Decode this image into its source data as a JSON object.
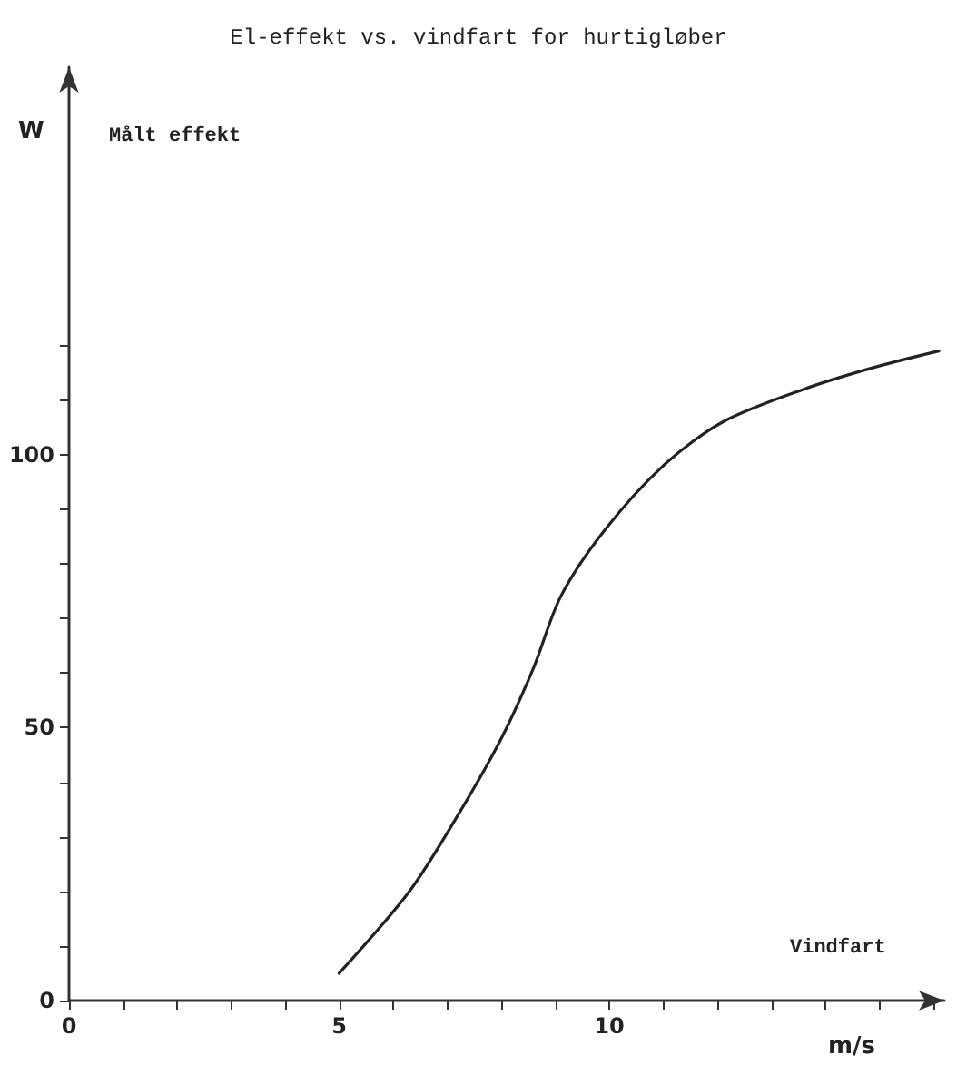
{
  "chart_data": {
    "type": "line",
    "title": "El-effekt vs. vindfart for hurtigløber",
    "xlabel": "m/s",
    "ylabel": "W",
    "annotations": [
      "Målt effekt",
      "Vindfart"
    ],
    "series": [
      {
        "color": "#222222",
        "x": [
          5.0,
          6.3,
          7.2,
          8.0,
          8.6,
          9.1,
          9.9,
          11.0,
          12.1,
          13.6,
          14.9,
          16.1
        ],
        "values": [
          5,
          20,
          34,
          48,
          61,
          74,
          86,
          98,
          106,
          112,
          116,
          119
        ]
      }
    ],
    "xlim": [
      0,
      16.2
    ],
    "ylim": [
      0,
      171
    ],
    "xticks": [
      0,
      {
        "value": 1,
        "label": null
      },
      {
        "value": 2,
        "label": null
      },
      {
        "value": 3,
        "label": null
      },
      {
        "value": 4,
        "label": null
      },
      5,
      {
        "value": 6,
        "label": null
      },
      {
        "value": 7,
        "label": null
      },
      {
        "value": 8,
        "label": null
      },
      {
        "value": 9,
        "label": null
      },
      10,
      {
        "value": 11,
        "label": null
      },
      {
        "value": 12,
        "label": null
      },
      {
        "value": 13,
        "label": null
      },
      {
        "value": 14,
        "label": null
      },
      {
        "value": 15,
        "label": null
      },
      {
        "value": 16,
        "label": null
      }
    ],
    "yticks": [
      0,
      {
        "value": 10,
        "label": null
      },
      {
        "value": 20,
        "label": null
      },
      {
        "value": 30,
        "label": null
      },
      {
        "value": 40,
        "label": null
      },
      50,
      {
        "value": 60,
        "label": null
      },
      {
        "value": 70,
        "label": null
      },
      {
        "value": 80,
        "label": null
      },
      {
        "value": 90,
        "label": null
      },
      100,
      {
        "value": 110,
        "label": null
      },
      {
        "value": 120,
        "label": null
      }
    ],
    "grid": false,
    "marker": "none",
    "line_style": "solid"
  }
}
